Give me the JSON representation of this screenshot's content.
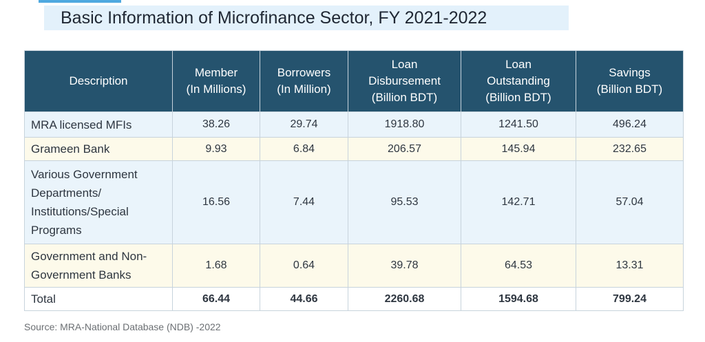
{
  "title": "Basic Information of Microfinance Sector, FY 2021-2022",
  "table": {
    "headers": [
      [
        "Description"
      ],
      [
        "Member",
        "(In Millions)"
      ],
      [
        "Borrowers",
        "(In Million)"
      ],
      [
        "Loan",
        "Disbursement",
        "(Billion BDT)"
      ],
      [
        "Loan",
        "Outstanding",
        "(Billion BDT)"
      ],
      [
        "Savings",
        "(Billion BDT)"
      ]
    ],
    "rows": [
      {
        "description": [
          "MRA licensed MFIs"
        ],
        "values": [
          "38.26",
          "29.74",
          "1918.80",
          "1241.50",
          "496.24"
        ]
      },
      {
        "description": [
          "Grameen Bank"
        ],
        "values": [
          "9.93",
          "6.84",
          "206.57",
          "145.94",
          "232.65"
        ]
      },
      {
        "description": [
          "Various Government",
          "Departments/",
          "Institutions/Special",
          "Programs"
        ],
        "values": [
          "16.56",
          "7.44",
          "95.53",
          "142.71",
          "57.04"
        ]
      },
      {
        "description": [
          "Government and Non-",
          "Government Banks"
        ],
        "values": [
          "1.68",
          "0.64",
          "39.78",
          "64.53",
          "13.31"
        ]
      },
      {
        "description": [
          "Total"
        ],
        "values": [
          "66.44",
          "44.66",
          "2260.68",
          "1594.68",
          "799.24"
        ]
      }
    ]
  },
  "source": "Source: MRA-National Database (NDB) -2022",
  "colors": {
    "header_bg": "#25536e",
    "row_blue": "#eaf4fb",
    "row_cream": "#fdfaea",
    "title_band": "#e3f1fb"
  }
}
